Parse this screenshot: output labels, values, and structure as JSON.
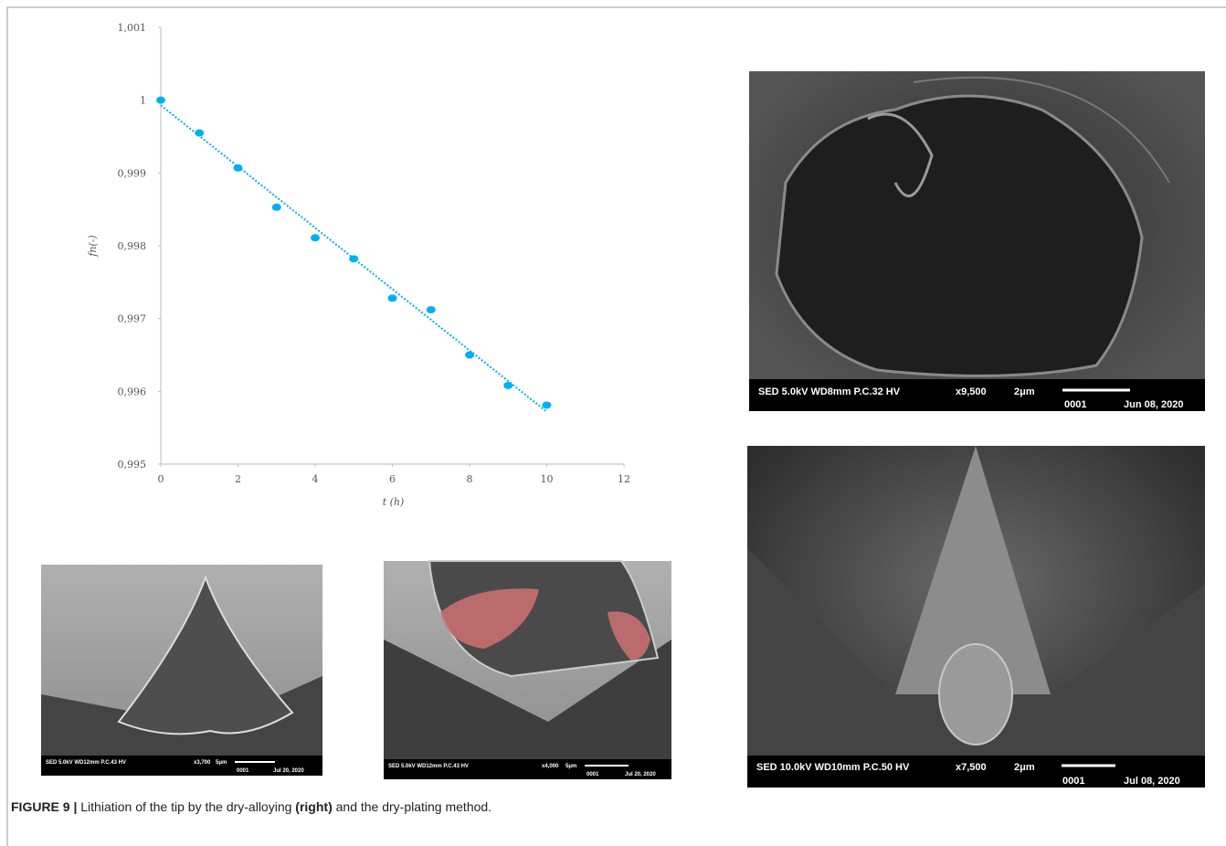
{
  "chart_data": {
    "type": "scatter",
    "x_label": "t (h)",
    "y_label": "fn(-)",
    "x": [
      0,
      1,
      2,
      3,
      4,
      5,
      6,
      7,
      8,
      9,
      10
    ],
    "values": [
      1.0,
      0.99955,
      0.99907,
      0.99853,
      0.99811,
      0.99782,
      0.99728,
      0.99712,
      0.9965,
      0.99608,
      0.99581
    ],
    "color": "#00b0f0",
    "trendline": {
      "x": [
        0,
        10
      ],
      "values": [
        0.99993,
        0.99572
      ],
      "color": "#00b0f0"
    },
    "xlim": [
      0,
      12
    ],
    "xticks": [
      0,
      2,
      4,
      6,
      8,
      10,
      12
    ],
    "ylim": [
      0.995,
      1.001
    ],
    "yticks": [
      {
        "value": 0.995,
        "label": "0,995"
      },
      {
        "value": 0.996,
        "label": "0,996"
      },
      {
        "value": 0.997,
        "label": "0,997"
      },
      {
        "value": 0.998,
        "label": "0,998"
      },
      {
        "value": 0.999,
        "label": "0,999"
      },
      1,
      {
        "value": 1.001,
        "label": "1,001"
      }
    ],
    "grid": false
  },
  "images": [
    {
      "info": "SED 5.0kV  WD8mm  P.C.32  HV",
      "magnification": "x9,500",
      "scale": "2μm",
      "id": "0001",
      "date": "Jun 08, 2020"
    },
    {
      "info": "SED 10.0kV WD10mm P.C.50  HV",
      "magnification": "x7,500",
      "scale": "2μm",
      "id": "0001",
      "date": "Jul 08, 2020"
    },
    {
      "info": "SED 5.0kV  WD12mm P.C.43  HV",
      "magnification": "x3,700",
      "scale": "5μm",
      "id": "0001",
      "date": "Jul 20, 2020"
    },
    {
      "info": "SED 5.0kV  WD12mm P.C.43  HV",
      "magnification": "x4,000",
      "scale": "5μm",
      "id": "0001",
      "date": "Jul 20, 2020"
    }
  ],
  "caption": {
    "label": "FIGURE 9 |",
    "text1": " Lithiation of the tip by the dry-alloying ",
    "bold": "(right)",
    "text2": " and the dry-plating method."
  }
}
